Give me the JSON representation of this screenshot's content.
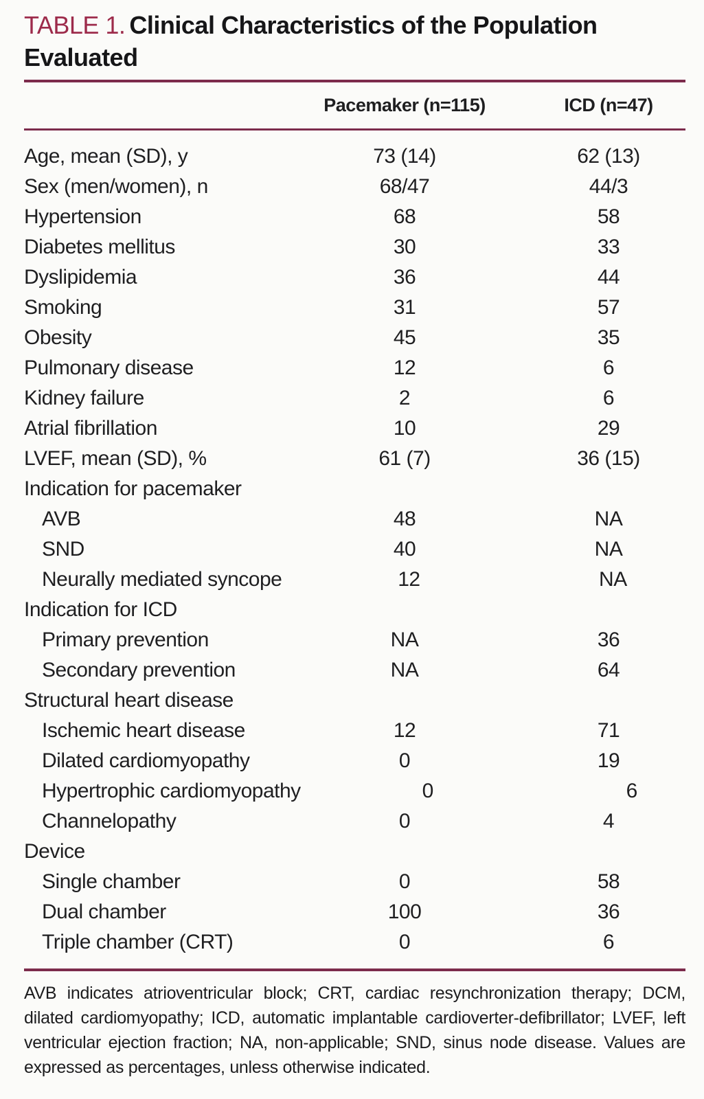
{
  "title": {
    "label": "TABLE 1.",
    "text": "Clinical Characteristics of the Population Evaluated"
  },
  "header": {
    "columns": [
      "Pacemaker (n=115)",
      "ICD (n=47)"
    ]
  },
  "table": {
    "rows": [
      {
        "label": "Age, mean (SD), y",
        "indent": 0,
        "values": [
          "73 (14)",
          "62 (13)"
        ]
      },
      {
        "label": "Sex (men/women), n",
        "indent": 0,
        "values": [
          "68/47",
          "44/3"
        ]
      },
      {
        "label": "Hypertension",
        "indent": 0,
        "values": [
          "68",
          "58"
        ]
      },
      {
        "label": "Diabetes mellitus",
        "indent": 0,
        "values": [
          "30",
          "33"
        ]
      },
      {
        "label": "Dyslipidemia",
        "indent": 0,
        "values": [
          "36",
          "44"
        ]
      },
      {
        "label": "Smoking",
        "indent": 0,
        "values": [
          "31",
          "57"
        ]
      },
      {
        "label": "Obesity",
        "indent": 0,
        "values": [
          "45",
          "35"
        ]
      },
      {
        "label": "Pulmonary disease",
        "indent": 0,
        "values": [
          "12",
          "6"
        ]
      },
      {
        "label": "Kidney failure",
        "indent": 0,
        "values": [
          "2",
          "6"
        ]
      },
      {
        "label": "Atrial fibrillation",
        "indent": 0,
        "values": [
          "10",
          "29"
        ]
      },
      {
        "label": "LVEF, mean (SD), %",
        "indent": 0,
        "values": [
          "61 (7)",
          "36 (15)"
        ]
      },
      {
        "label": "Indication for pacemaker",
        "indent": 0,
        "values": [
          "",
          ""
        ]
      },
      {
        "label": "AVB",
        "indent": 1,
        "values": [
          "48",
          "NA"
        ]
      },
      {
        "label": "SND",
        "indent": 1,
        "values": [
          "40",
          "NA"
        ]
      },
      {
        "label": "Neurally mediated syncope",
        "indent": 1,
        "values": [
          "12",
          "NA"
        ]
      },
      {
        "label": "Indication for ICD",
        "indent": 0,
        "values": [
          "",
          ""
        ]
      },
      {
        "label": "Primary prevention",
        "indent": 1,
        "values": [
          "NA",
          "36"
        ]
      },
      {
        "label": "Secondary prevention",
        "indent": 1,
        "values": [
          "NA",
          "64"
        ]
      },
      {
        "label": "Structural heart disease",
        "indent": 0,
        "values": [
          "",
          ""
        ]
      },
      {
        "label": "Ischemic heart disease",
        "indent": 1,
        "values": [
          "12",
          "71"
        ]
      },
      {
        "label": "Dilated cardiomyopathy",
        "indent": 1,
        "values": [
          "0",
          "19"
        ]
      },
      {
        "label": "Hypertrophic cardiomyopathy",
        "indent": 1,
        "values": [
          "0",
          "6"
        ]
      },
      {
        "label": "Channelopathy",
        "indent": 1,
        "values": [
          "0",
          "4"
        ]
      },
      {
        "label": "Device",
        "indent": 0,
        "values": [
          "",
          ""
        ]
      },
      {
        "label": "Single chamber",
        "indent": 1,
        "values": [
          "0",
          "58"
        ]
      },
      {
        "label": "Dual chamber",
        "indent": 1,
        "values": [
          "100",
          "36"
        ]
      },
      {
        "label": "Triple chamber (CRT)",
        "indent": 1,
        "values": [
          "0",
          "6"
        ]
      }
    ]
  },
  "footnote": "AVB indicates atrioventricular block; CRT, cardiac resynchronization therapy; DCM, dilated cardiomyopathy; ICD, automatic implantable cardioverter-defibrillator; LVEF, left ventricular ejection fraction; NA, non-applicable; SND, sinus node disease. Values are expressed as percentages, unless otherwise indicated.",
  "colors": {
    "accent_red": "#9d2b4b",
    "rule_maroon": "#7c2b4c",
    "text": "#1f1f21",
    "background": "#fbfbf9"
  }
}
